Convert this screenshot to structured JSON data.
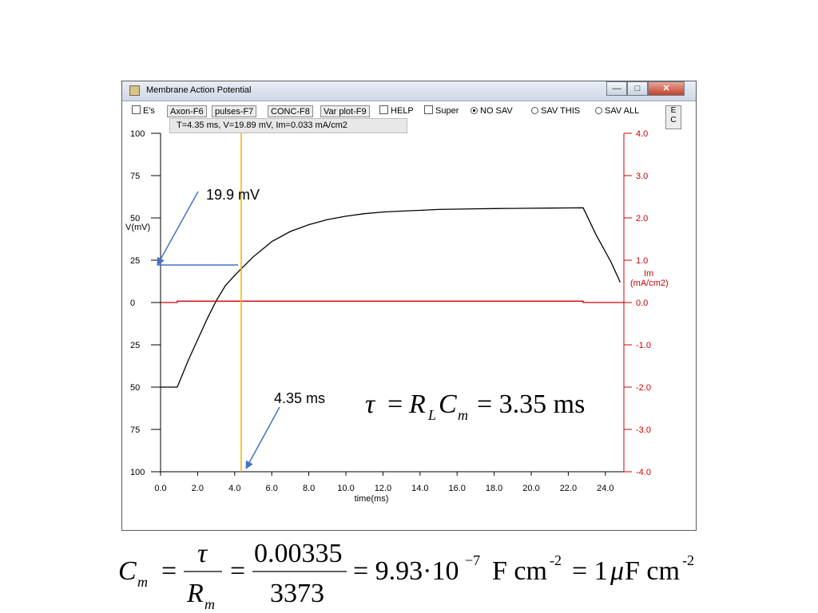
{
  "window": {
    "title": "Membrane Action Potential",
    "controls": {
      "minimize": "—",
      "maximize": "□",
      "close": "✕"
    }
  },
  "toolbar": {
    "es_label": "E's",
    "axon_button": "Axon-F6",
    "pulses_button": "pulses-F7",
    "conc_button": "CONC-F8",
    "varplot_button": "Var plot-F9",
    "help_label": "HELP",
    "super_label": "Super",
    "nosav_label": "NO SAV",
    "savthis_label": "SAV THIS",
    "savall_label": "SAV ALL",
    "selected_save": "NO SAV",
    "ec_label": "E\nC"
  },
  "readout": "T=4.35 ms, V=19.89 mV, Im=0.033 mA/cm2",
  "annotations": {
    "voltage_label": "19.9 mV",
    "time_label": "4.35 ms",
    "tau_equation": "τ = R_L C_m = 3.35 ms"
  },
  "bottom_equation": {
    "lhs": "C_m",
    "frac1_num": "τ",
    "frac1_den": "R_m",
    "frac2_num": "0.00335",
    "frac2_den": "3373",
    "result": "9.93·10^-7 F cm^-2 = 1 μF cm^-2"
  },
  "colors": {
    "voltage_trace": "#000000",
    "current_trace": "#cc0000",
    "cursor": "#f5b400",
    "arrow": "#4472c4"
  },
  "chart_data": {
    "type": "line",
    "xlabel": "time(ms)",
    "ylabel_left": "V(mV)",
    "ylabel_right": "Im\n(mA/cm2)",
    "xlim": [
      0,
      25
    ],
    "ylim_left": [
      -100,
      100
    ],
    "ylim_right": [
      -4.0,
      4.0
    ],
    "x_ticks": [
      "0.0",
      "2.0",
      "4.0",
      "6.0",
      "8.0",
      "10.0",
      "12.0",
      "14.0",
      "16.0",
      "18.0",
      "20.0",
      "22.0",
      "24.0"
    ],
    "y_ticks_left": [
      "100",
      "75",
      "50",
      "25",
      "0",
      "25",
      "50",
      "75",
      "100"
    ],
    "y_ticks_right": [
      "4.0",
      "3.0",
      "2.0",
      "1.0",
      "0.0",
      "-1.0",
      "-2.0",
      "-3.0",
      "-4.0"
    ],
    "cursor_x": 4.35,
    "series": [
      {
        "axis": "left",
        "x": [
          0,
          0.9,
          1.5,
          2,
          2.5,
          3,
          3.5,
          4,
          4.35,
          5,
          6,
          7,
          8,
          9,
          10,
          11,
          12,
          13,
          14,
          15,
          16,
          17,
          18,
          19,
          20,
          21,
          22,
          22.8,
          23.5,
          24.3,
          24.8
        ],
        "values": [
          -50,
          -50,
          -34,
          -22,
          -10,
          1,
          10,
          16,
          19.9,
          27,
          36,
          42,
          46,
          49,
          51,
          52.5,
          53.5,
          54,
          54.5,
          55,
          55.2,
          55.4,
          55.5,
          55.6,
          55.7,
          55.8,
          55.9,
          56,
          40,
          24,
          12
        ]
      },
      {
        "axis": "right",
        "x": [
          0,
          0.9,
          0.9,
          22.8,
          22.8,
          25
        ],
        "values": [
          0,
          0,
          0.033,
          0.033,
          0,
          0
        ]
      }
    ]
  }
}
